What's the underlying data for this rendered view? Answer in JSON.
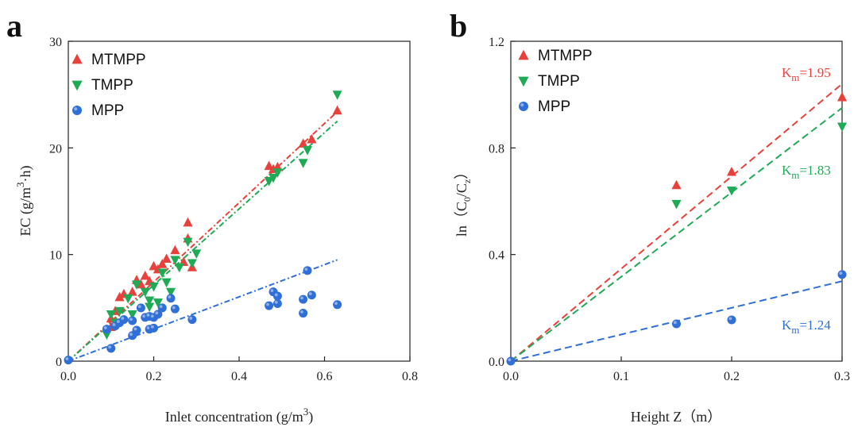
{
  "chart_data": [
    {
      "type": "scatter",
      "panel_label": "a",
      "xlabel": "Inlet concentration (g/m",
      "xlabel_sup": "3",
      "xlabel_tail": ")",
      "ylabel": "EC (g/m",
      "ylabel_sup": "3",
      "ylabel_tail": "·h)",
      "xlim": [
        0,
        0.8
      ],
      "ylim": [
        0,
        30
      ],
      "xticks": [
        "0.0",
        "0.2",
        "0.4",
        "0.6",
        "0.8"
      ],
      "yticks": [
        "0",
        "10",
        "20",
        "30"
      ],
      "grid": false,
      "legend_position": "top-left",
      "series": [
        {
          "name": "MTMPP",
          "color": "#e8413c",
          "marker": "triangle-up",
          "points": [
            [
              0.1,
              3.2
            ],
            [
              0.1,
              4.0
            ],
            [
              0.11,
              4.7
            ],
            [
              0.12,
              6.0
            ],
            [
              0.13,
              6.3
            ],
            [
              0.15,
              6.5
            ],
            [
              0.16,
              7.6
            ],
            [
              0.17,
              7.2
            ],
            [
              0.18,
              8.0
            ],
            [
              0.19,
              7.5
            ],
            [
              0.2,
              8.9
            ],
            [
              0.21,
              8.6
            ],
            [
              0.22,
              9.1
            ],
            [
              0.23,
              9.6
            ],
            [
              0.25,
              10.4
            ],
            [
              0.27,
              9.3
            ],
            [
              0.28,
              13.0
            ],
            [
              0.28,
              11.5
            ],
            [
              0.29,
              8.8
            ],
            [
              0.47,
              18.3
            ],
            [
              0.48,
              18.0
            ],
            [
              0.49,
              18.2
            ],
            [
              0.55,
              20.4
            ],
            [
              0.57,
              20.8
            ],
            [
              0.63,
              23.5
            ]
          ],
          "fit": {
            "x": [
              0,
              0.63
            ],
            "y": [
              0,
              23.4
            ]
          }
        },
        {
          "name": "TMPP",
          "color": "#1faa55",
          "marker": "triangle-down",
          "points": [
            [
              0.09,
              2.5
            ],
            [
              0.1,
              4.4
            ],
            [
              0.11,
              3.6
            ],
            [
              0.12,
              4.7
            ],
            [
              0.14,
              5.9
            ],
            [
              0.15,
              4.4
            ],
            [
              0.16,
              7.2
            ],
            [
              0.18,
              6.5
            ],
            [
              0.19,
              5.7
            ],
            [
              0.19,
              5.1
            ],
            [
              0.2,
              7.0
            ],
            [
              0.21,
              5.5
            ],
            [
              0.22,
              8.3
            ],
            [
              0.23,
              7.4
            ],
            [
              0.24,
              6.5
            ],
            [
              0.25,
              9.5
            ],
            [
              0.26,
              8.8
            ],
            [
              0.28,
              11.2
            ],
            [
              0.29,
              9.2
            ],
            [
              0.3,
              10.1
            ],
            [
              0.47,
              16.9
            ],
            [
              0.48,
              17.2
            ],
            [
              0.49,
              17.7
            ],
            [
              0.55,
              18.6
            ],
            [
              0.56,
              19.8
            ],
            [
              0.63,
              25.0
            ]
          ],
          "fit": {
            "x": [
              0,
              0.63
            ],
            "y": [
              0,
              22.5
            ]
          }
        },
        {
          "name": "MPP",
          "color": "#2f6fd6",
          "marker": "circle",
          "points": [
            [
              0.0,
              0.1
            ],
            [
              0.09,
              3.0
            ],
            [
              0.1,
              1.2
            ],
            [
              0.11,
              3.3
            ],
            [
              0.12,
              3.6
            ],
            [
              0.13,
              3.9
            ],
            [
              0.15,
              2.4
            ],
            [
              0.15,
              3.8
            ],
            [
              0.16,
              2.9
            ],
            [
              0.17,
              5.0
            ],
            [
              0.18,
              4.1
            ],
            [
              0.19,
              3.0
            ],
            [
              0.19,
              4.2
            ],
            [
              0.2,
              3.1
            ],
            [
              0.2,
              4.1
            ],
            [
              0.21,
              4.4
            ],
            [
              0.22,
              5.0
            ],
            [
              0.24,
              5.9
            ],
            [
              0.25,
              4.9
            ],
            [
              0.29,
              3.9
            ],
            [
              0.47,
              5.2
            ],
            [
              0.48,
              6.5
            ],
            [
              0.49,
              5.4
            ],
            [
              0.49,
              6.1
            ],
            [
              0.55,
              4.5
            ],
            [
              0.55,
              5.8
            ],
            [
              0.56,
              8.5
            ],
            [
              0.57,
              6.2
            ],
            [
              0.63,
              5.3
            ]
          ],
          "fit": {
            "x": [
              0,
              0.63
            ],
            "y": [
              0,
              9.5
            ]
          }
        }
      ]
    },
    {
      "type": "scatter",
      "panel_label": "b",
      "xlabel": "Height Z（m）",
      "ylabel": "ln（C",
      "ylabel_sub0": "0",
      "ylabel_mid": "/C",
      "ylabel_sub1": "z",
      "ylabel_tail": "）",
      "xlim": [
        0,
        0.3
      ],
      "ylim": [
        0,
        1.2
      ],
      "xticks": [
        "0.0",
        "0.1",
        "0.2",
        "0.3"
      ],
      "yticks": [
        "0.0",
        "0.4",
        "0.8",
        "1.2"
      ],
      "grid": false,
      "legend_position": "top-left",
      "series": [
        {
          "name": "MTMPP",
          "color": "#e8413c",
          "marker": "triangle-up",
          "points": [
            [
              0.15,
              0.66
            ],
            [
              0.2,
              0.71
            ],
            [
              0.3,
              0.99
            ]
          ],
          "fit": {
            "x": [
              0,
              0.3
            ],
            "y": [
              0,
              1.04
            ]
          },
          "annotation": {
            "main": "K",
            "sub": "m",
            "value": "=1.95"
          }
        },
        {
          "name": "TMPP",
          "color": "#1faa55",
          "marker": "triangle-down",
          "points": [
            [
              0.15,
              0.59
            ],
            [
              0.2,
              0.64
            ],
            [
              0.3,
              0.88
            ]
          ],
          "fit": {
            "x": [
              0,
              0.3
            ],
            "y": [
              0,
              0.95
            ]
          },
          "annotation": {
            "main": "K",
            "sub": "m",
            "value": "=1.83"
          }
        },
        {
          "name": "MPP",
          "color": "#2f6fd6",
          "marker": "circle",
          "points": [
            [
              0.0,
              0.0
            ],
            [
              0.15,
              0.14
            ],
            [
              0.2,
              0.155
            ],
            [
              0.3,
              0.325
            ]
          ],
          "fit": {
            "x": [
              0,
              0.3
            ],
            "y": [
              0,
              0.3
            ]
          },
          "annotation": {
            "main": "K",
            "sub": "m",
            "value": "=1.24"
          }
        }
      ]
    }
  ]
}
